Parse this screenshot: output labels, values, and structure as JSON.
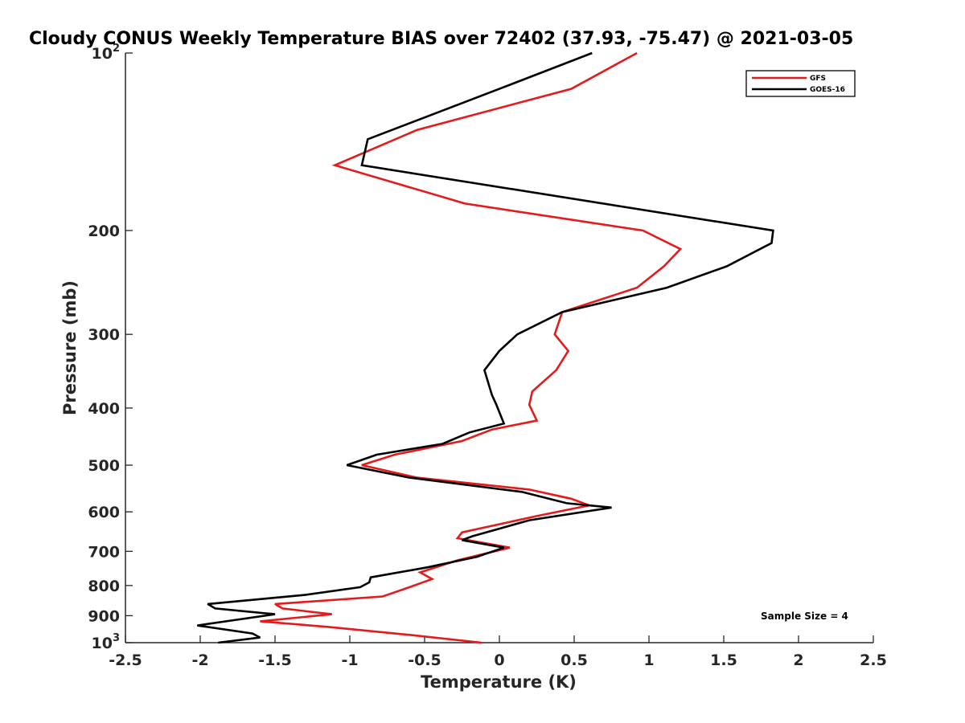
{
  "chart_data": {
    "type": "line",
    "title": "Cloudy CONUS Weekly Temperature BIAS over 72402 (37.93, -75.47) @ 2021-03-05",
    "xlabel": "Temperature (K)",
    "ylabel": "Pressure (mb)",
    "xlim": [
      -2.5,
      2.5
    ],
    "ylim": [
      100,
      1000
    ],
    "yscale": "log",
    "y_reversed": true,
    "grid": false,
    "legend_position": "top-right",
    "x_ticks": [
      "-2.5",
      "-2",
      "-1.5",
      "-1",
      "-0.5",
      "0",
      "0.5",
      "1",
      "1.5",
      "2",
      "2.5"
    ],
    "x_tick_values": [
      -2.5,
      -2,
      -1.5,
      -1,
      -0.5,
      0,
      0.5,
      1,
      1.5,
      2,
      2.5
    ],
    "y_ticks": [
      {
        "value": 100,
        "base": "10",
        "exp": "2"
      },
      {
        "value": 200,
        "label": "200"
      },
      {
        "value": 300,
        "label": "300"
      },
      {
        "value": 400,
        "label": "400"
      },
      {
        "value": 500,
        "label": "500"
      },
      {
        "value": 600,
        "label": "600"
      },
      {
        "value": 700,
        "label": "700"
      },
      {
        "value": 800,
        "label": "800"
      },
      {
        "value": 900,
        "label": "900"
      },
      {
        "value": 1000,
        "base": "10",
        "exp": "3"
      }
    ],
    "annotation": "Sample Size = 4",
    "series": [
      {
        "name": "GFS",
        "color": "#e41a1c",
        "points": [
          [
            0.92,
            100
          ],
          [
            0.48,
            115
          ],
          [
            -0.55,
            135
          ],
          [
            -1.1,
            155
          ],
          [
            -0.23,
            180
          ],
          [
            0.96,
            200
          ],
          [
            1.21,
            215
          ],
          [
            1.1,
            230
          ],
          [
            0.92,
            250
          ],
          [
            0.42,
            275
          ],
          [
            0.37,
            300
          ],
          [
            0.46,
            320
          ],
          [
            0.38,
            345
          ],
          [
            0.22,
            375
          ],
          [
            0.2,
            395
          ],
          [
            0.25,
            420
          ],
          [
            -0.05,
            435
          ],
          [
            -0.25,
            455
          ],
          [
            -0.7,
            480
          ],
          [
            -0.92,
            500
          ],
          [
            -0.55,
            525
          ],
          [
            0.2,
            550
          ],
          [
            0.48,
            570
          ],
          [
            0.6,
            585
          ],
          [
            0.25,
            610
          ],
          [
            -0.25,
            650
          ],
          [
            -0.28,
            665
          ],
          [
            0.07,
            690
          ],
          [
            -0.28,
            725
          ],
          [
            -0.53,
            760
          ],
          [
            -0.45,
            780
          ],
          [
            -0.6,
            805
          ],
          [
            -0.78,
            835
          ],
          [
            -1.5,
            860
          ],
          [
            -1.45,
            875
          ],
          [
            -1.12,
            895
          ],
          [
            -1.6,
            920
          ],
          [
            -1.15,
            940
          ],
          [
            -0.6,
            970
          ],
          [
            -0.12,
            1000
          ]
        ]
      },
      {
        "name": "GOES-16",
        "color": "#000000",
        "points": [
          [
            0.62,
            100
          ],
          [
            0.0,
            115
          ],
          [
            -0.88,
            140
          ],
          [
            -0.92,
            155
          ],
          [
            1.83,
            200
          ],
          [
            1.82,
            210
          ],
          [
            1.52,
            230
          ],
          [
            1.12,
            250
          ],
          [
            0.42,
            275
          ],
          [
            0.12,
            300
          ],
          [
            0.0,
            320
          ],
          [
            -0.1,
            345
          ],
          [
            -0.05,
            380
          ],
          [
            -0.02,
            395
          ],
          [
            0.03,
            425
          ],
          [
            -0.2,
            440
          ],
          [
            -0.38,
            460
          ],
          [
            -0.82,
            480
          ],
          [
            -1.02,
            500
          ],
          [
            -0.6,
            525
          ],
          [
            0.15,
            555
          ],
          [
            0.45,
            580
          ],
          [
            0.75,
            590
          ],
          [
            0.2,
            620
          ],
          [
            -0.18,
            660
          ],
          [
            -0.25,
            670
          ],
          [
            0.03,
            690
          ],
          [
            -0.15,
            715
          ],
          [
            -0.48,
            745
          ],
          [
            -0.86,
            775
          ],
          [
            -0.87,
            790
          ],
          [
            -0.93,
            805
          ],
          [
            -1.3,
            830
          ],
          [
            -1.95,
            860
          ],
          [
            -1.9,
            875
          ],
          [
            -1.5,
            895
          ],
          [
            -2.02,
            935
          ],
          [
            -1.65,
            965
          ],
          [
            -1.6,
            980
          ],
          [
            -1.88,
            1000
          ]
        ]
      }
    ]
  }
}
